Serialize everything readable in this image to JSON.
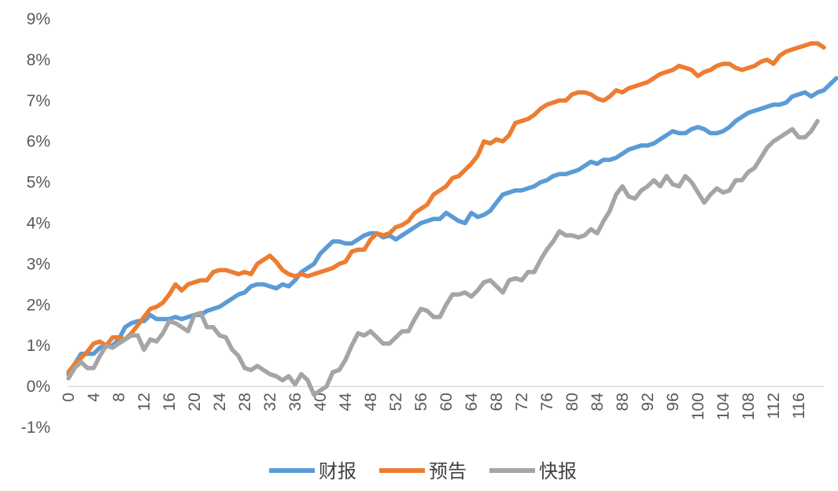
{
  "chart_data": {
    "type": "line",
    "title": "",
    "xlabel": "",
    "ylabel": "",
    "ylim": [
      -1,
      9
    ],
    "y_unit": "%",
    "y_ticks": [
      -1,
      0,
      1,
      2,
      3,
      4,
      5,
      6,
      7,
      8,
      9
    ],
    "y_tick_labels": [
      "-1%",
      "0%",
      "1%",
      "2%",
      "3%",
      "4%",
      "5%",
      "6%",
      "7%",
      "8%",
      "9%"
    ],
    "x_range": [
      0,
      120
    ],
    "x_tick_labels": [
      "0",
      "4",
      "8",
      "12",
      "16",
      "20",
      "24",
      "28",
      "32",
      "36",
      "40",
      "44",
      "48",
      "52",
      "56",
      "60",
      "64",
      "68",
      "72",
      "76",
      "80",
      "84",
      "88",
      "92",
      "96",
      "100",
      "104",
      "108",
      "112",
      "116"
    ],
    "grid": false,
    "legend_position": "bottom",
    "series": [
      {
        "name": "财报",
        "color": "#5B9BD5",
        "values": [
          0.3,
          0.55,
          0.8,
          0.8,
          0.8,
          0.95,
          1.0,
          1.0,
          1.15,
          1.45,
          1.55,
          1.6,
          1.6,
          1.75,
          1.65,
          1.65,
          1.65,
          1.7,
          1.65,
          1.7,
          1.75,
          1.75,
          1.85,
          1.9,
          1.95,
          2.05,
          2.15,
          2.25,
          2.3,
          2.45,
          2.5,
          2.5,
          2.45,
          2.4,
          2.5,
          2.45,
          2.6,
          2.8,
          2.9,
          3.0,
          3.25,
          3.4,
          3.55,
          3.55,
          3.5,
          3.5,
          3.6,
          3.7,
          3.75,
          3.75,
          3.65,
          3.7,
          3.6,
          3.7,
          3.8,
          3.9,
          4.0,
          4.05,
          4.1,
          4.1,
          4.25,
          4.15,
          4.05,
          4.0,
          4.25,
          4.15,
          4.2,
          4.3,
          4.5,
          4.7,
          4.75,
          4.8,
          4.8,
          4.85,
          4.9,
          5.0,
          5.05,
          5.15,
          5.2,
          5.2,
          5.25,
          5.3,
          5.4,
          5.5,
          5.45,
          5.55,
          5.55,
          5.6,
          5.7,
          5.8,
          5.85,
          5.9,
          5.9,
          5.95,
          6.05,
          6.15,
          6.25,
          6.2,
          6.2,
          6.3,
          6.35,
          6.3,
          6.2,
          6.2,
          6.25,
          6.35,
          6.5,
          6.6,
          6.7,
          6.75,
          6.8,
          6.85,
          6.9,
          6.9,
          6.95,
          7.1,
          7.15,
          7.2,
          7.1,
          7.2,
          7.25,
          7.4,
          7.55
        ]
      },
      {
        "name": "预告",
        "color": "#ED7D31",
        "values": [
          0.35,
          0.55,
          0.7,
          0.85,
          1.05,
          1.1,
          1.0,
          1.2,
          1.2,
          1.15,
          1.3,
          1.5,
          1.7,
          1.9,
          1.95,
          2.05,
          2.25,
          2.5,
          2.35,
          2.5,
          2.55,
          2.6,
          2.6,
          2.8,
          2.85,
          2.85,
          2.8,
          2.75,
          2.8,
          2.75,
          3.0,
          3.1,
          3.2,
          3.05,
          2.85,
          2.75,
          2.7,
          2.75,
          2.7,
          2.75,
          2.8,
          2.85,
          2.9,
          3.0,
          3.05,
          3.3,
          3.35,
          3.35,
          3.6,
          3.75,
          3.7,
          3.75,
          3.9,
          3.95,
          4.05,
          4.25,
          4.35,
          4.45,
          4.7,
          4.8,
          4.9,
          5.1,
          5.15,
          5.3,
          5.45,
          5.65,
          6.0,
          5.95,
          6.05,
          6.0,
          6.15,
          6.45,
          6.5,
          6.55,
          6.65,
          6.8,
          6.9,
          6.95,
          7.0,
          7.0,
          7.15,
          7.2,
          7.2,
          7.15,
          7.05,
          7.0,
          7.1,
          7.25,
          7.2,
          7.3,
          7.35,
          7.4,
          7.45,
          7.55,
          7.65,
          7.7,
          7.75,
          7.85,
          7.8,
          7.75,
          7.6,
          7.7,
          7.75,
          7.85,
          7.9,
          7.9,
          7.8,
          7.75,
          7.8,
          7.85,
          7.95,
          8.0,
          7.9,
          8.1,
          8.2,
          8.25,
          8.3,
          8.35,
          8.4,
          8.4,
          8.3
        ]
      },
      {
        "name": "快报",
        "color": "#A5A5A5",
        "values": [
          0.2,
          0.45,
          0.6,
          0.45,
          0.45,
          0.75,
          1.0,
          0.95,
          1.05,
          1.15,
          1.25,
          1.25,
          0.9,
          1.15,
          1.1,
          1.3,
          1.6,
          1.55,
          1.45,
          1.35,
          1.75,
          1.8,
          1.45,
          1.45,
          1.25,
          1.2,
          0.9,
          0.75,
          0.45,
          0.4,
          0.5,
          0.4,
          0.3,
          0.25,
          0.15,
          0.25,
          0.05,
          0.3,
          0.15,
          -0.2,
          -0.1,
          0.0,
          0.35,
          0.4,
          0.65,
          1.0,
          1.3,
          1.25,
          1.35,
          1.2,
          1.05,
          1.05,
          1.2,
          1.35,
          1.35,
          1.65,
          1.9,
          1.85,
          1.7,
          1.7,
          2.0,
          2.25,
          2.25,
          2.3,
          2.2,
          2.35,
          2.55,
          2.6,
          2.45,
          2.3,
          2.6,
          2.65,
          2.6,
          2.8,
          2.8,
          3.1,
          3.35,
          3.55,
          3.8,
          3.7,
          3.7,
          3.65,
          3.7,
          3.85,
          3.75,
          4.05,
          4.3,
          4.7,
          4.9,
          4.65,
          4.6,
          4.8,
          4.9,
          5.05,
          4.9,
          5.15,
          4.95,
          4.9,
          5.15,
          5.0,
          4.75,
          4.5,
          4.7,
          4.85,
          4.75,
          4.8,
          5.05,
          5.05,
          5.25,
          5.35,
          5.6,
          5.85,
          6.0,
          6.1,
          6.2,
          6.3,
          6.1,
          6.1,
          6.25,
          6.5
        ]
      }
    ]
  }
}
